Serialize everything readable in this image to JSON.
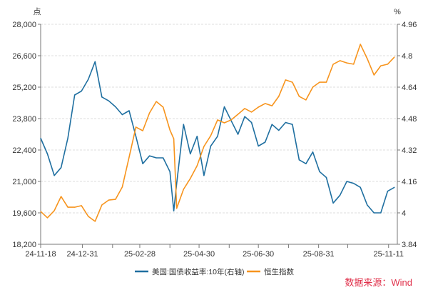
{
  "chart_data": {
    "type": "line",
    "left_axis_unit": "点",
    "right_axis_unit": "%",
    "ylim_left": [
      18200,
      28000
    ],
    "yticks_left": [
      "18,200",
      "19,600",
      "21,000",
      "22,400",
      "23,800",
      "25,200",
      "26,600",
      "28,000"
    ],
    "ylim_right": [
      3.84,
      4.96
    ],
    "yticks_right": [
      "3.84",
      "4",
      "4.16",
      "4.32",
      "4.48",
      "4.64",
      "4.8",
      "4.96"
    ],
    "xlim": [
      "2024-11-18",
      "2025-11-20"
    ],
    "xticks": [
      {
        "date": "2024-11-18",
        "label": "24-11-18"
      },
      {
        "date": "2024-12-31",
        "label": "24-12-31"
      },
      {
        "date": "2025-01-31",
        "label": ""
      },
      {
        "date": "2025-02-28",
        "label": "25-02-28"
      },
      {
        "date": "2025-03-31",
        "label": ""
      },
      {
        "date": "2025-04-30",
        "label": "25-04-30"
      },
      {
        "date": "2025-05-31",
        "label": ""
      },
      {
        "date": "2025-06-30",
        "label": "25-06-30"
      },
      {
        "date": "2025-07-31",
        "label": ""
      },
      {
        "date": "2025-08-31",
        "label": "25-08-31"
      },
      {
        "date": "2025-09-30",
        "label": ""
      },
      {
        "date": "2025-11-11",
        "label": "25-11-11"
      }
    ],
    "grid": "horizontal dashed",
    "legend_position": "bottom-center",
    "x": [
      "2024-11-18",
      "2024-11-25",
      "2024-12-02",
      "2024-12-09",
      "2024-12-16",
      "2024-12-23",
      "2024-12-30",
      "2025-01-06",
      "2025-01-13",
      "2025-01-20",
      "2025-01-27",
      "2025-02-03",
      "2025-02-10",
      "2025-02-17",
      "2025-02-24",
      "2025-03-03",
      "2025-03-10",
      "2025-03-17",
      "2025-03-24",
      "2025-03-31",
      "2025-04-04",
      "2025-04-07",
      "2025-04-14",
      "2025-04-21",
      "2025-04-28",
      "2025-05-05",
      "2025-05-12",
      "2025-05-19",
      "2025-05-26",
      "2025-06-02",
      "2025-06-09",
      "2025-06-16",
      "2025-06-23",
      "2025-06-30",
      "2025-07-07",
      "2025-07-14",
      "2025-07-21",
      "2025-07-28",
      "2025-08-04",
      "2025-08-11",
      "2025-08-18",
      "2025-08-25",
      "2025-09-01",
      "2025-09-08",
      "2025-09-15",
      "2025-09-22",
      "2025-09-29",
      "2025-10-06",
      "2025-10-13",
      "2025-10-20",
      "2025-10-27",
      "2025-11-03",
      "2025-11-10",
      "2025-11-17"
    ],
    "series": [
      {
        "name": "美国:国债收益率:10年(右轴)",
        "axis": "right",
        "color": "#1f6fa0",
        "values": [
          4.38,
          4.3,
          4.19,
          4.23,
          4.38,
          4.6,
          4.62,
          4.68,
          4.77,
          4.59,
          4.57,
          4.54,
          4.5,
          4.52,
          4.39,
          4.25,
          4.29,
          4.28,
          4.28,
          4.21,
          4.01,
          4.15,
          4.45,
          4.3,
          4.39,
          4.19,
          4.34,
          4.39,
          4.54,
          4.47,
          4.4,
          4.49,
          4.46,
          4.34,
          4.36,
          4.45,
          4.42,
          4.46,
          4.45,
          4.27,
          4.25,
          4.31,
          4.21,
          4.18,
          4.05,
          4.09,
          4.16,
          4.15,
          4.13,
          4.04,
          4.0,
          4.0,
          4.11,
          4.13
        ]
      },
      {
        "name": "恒生指数",
        "axis": "left",
        "color": "#f7941d",
        "values": [
          19660,
          19380,
          19700,
          20330,
          19850,
          19850,
          19920,
          19440,
          19220,
          19950,
          20170,
          20200,
          20750,
          22080,
          23420,
          23260,
          24050,
          24560,
          24310,
          23290,
          22900,
          19800,
          20650,
          21130,
          21700,
          22560,
          23040,
          23740,
          23610,
          23740,
          23990,
          24250,
          24090,
          24310,
          24470,
          24370,
          24790,
          25520,
          25420,
          24790,
          24630,
          25200,
          25420,
          25420,
          26220,
          26380,
          26280,
          26220,
          27110,
          26470,
          25740,
          26150,
          26220,
          26540
        ]
      }
    ]
  },
  "source": "数据来源：Wind"
}
